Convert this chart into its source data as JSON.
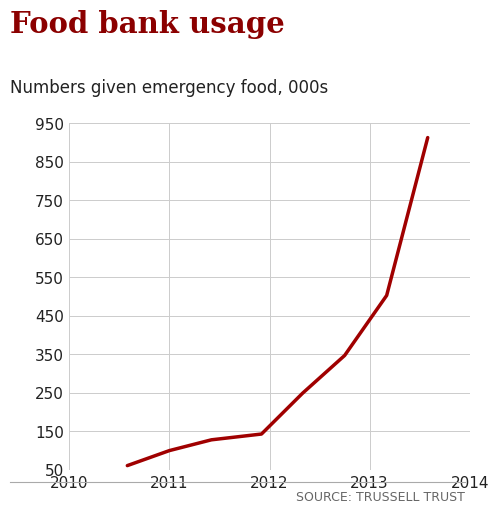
{
  "title": "Food bank usage",
  "subtitle": "Numbers given emergency food, 000s",
  "source": "SOURCE: TRUSSELL TRUST",
  "title_color": "#8B0000",
  "subtitle_color": "#222222",
  "line_color": "#A00000",
  "background_color": "#ffffff",
  "grid_color": "#cccccc",
  "x": [
    2010.58,
    2011.0,
    2011.42,
    2011.92,
    2012.33,
    2012.75,
    2013.17,
    2013.58
  ],
  "y": [
    61,
    100,
    128,
    143,
    249,
    347,
    503,
    913
  ],
  "xlim": [
    2010,
    2014
  ],
  "ylim": [
    50,
    950
  ],
  "yticks": [
    50,
    150,
    250,
    350,
    450,
    550,
    650,
    750,
    850,
    950
  ],
  "ytick_labels": [
    "50",
    "150",
    "250",
    "350",
    "450",
    "550",
    "650",
    "750",
    "850",
    "950"
  ],
  "xticks": [
    2010,
    2011,
    2012,
    2013,
    2014
  ],
  "xtick_labels": [
    "2010",
    "2011",
    "2012",
    "2013",
    "2014"
  ],
  "title_fontsize": 21,
  "subtitle_fontsize": 12,
  "tick_fontsize": 11,
  "source_fontsize": 9,
  "line_width": 2.5,
  "source_line_color": "#aaaaaa"
}
